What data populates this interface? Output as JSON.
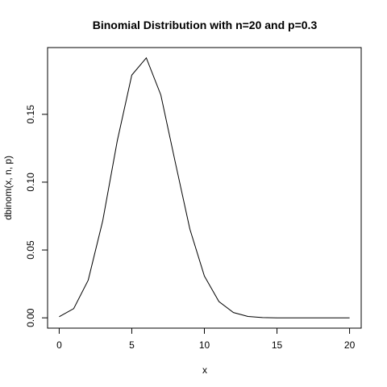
{
  "chart_data": {
    "type": "line",
    "title": "Binomial Distribution with n=20 and p=0.3",
    "xlabel": "x",
    "ylabel": "dbinom(x, n, p)",
    "xlim": [
      -0.8,
      20.8
    ],
    "ylim": [
      -0.0076,
      0.1992
    ],
    "x_ticks": [
      0,
      5,
      10,
      15,
      20
    ],
    "x_tick_labels": [
      "0",
      "5",
      "10",
      "15",
      "20"
    ],
    "y_ticks": [
      0,
      0.05,
      0.1,
      0.15
    ],
    "y_tick_labels": [
      "0.00",
      "0.05",
      "0.10",
      "0.15"
    ],
    "grid": false,
    "legend": "none",
    "line_color": "#000000",
    "x": [
      0,
      1,
      2,
      3,
      4,
      5,
      6,
      7,
      8,
      9,
      10,
      11,
      12,
      13,
      14,
      15,
      16,
      17,
      18,
      19,
      20
    ],
    "y": [
      0.0008,
      0.0068,
      0.0278,
      0.0716,
      0.1304,
      0.1789,
      0.1916,
      0.1643,
      0.1144,
      0.0654,
      0.0308,
      0.012,
      0.0039,
      0.001,
      0.0002,
      0.0,
      0.0,
      0.0,
      0.0,
      0.0,
      0.0
    ]
  }
}
